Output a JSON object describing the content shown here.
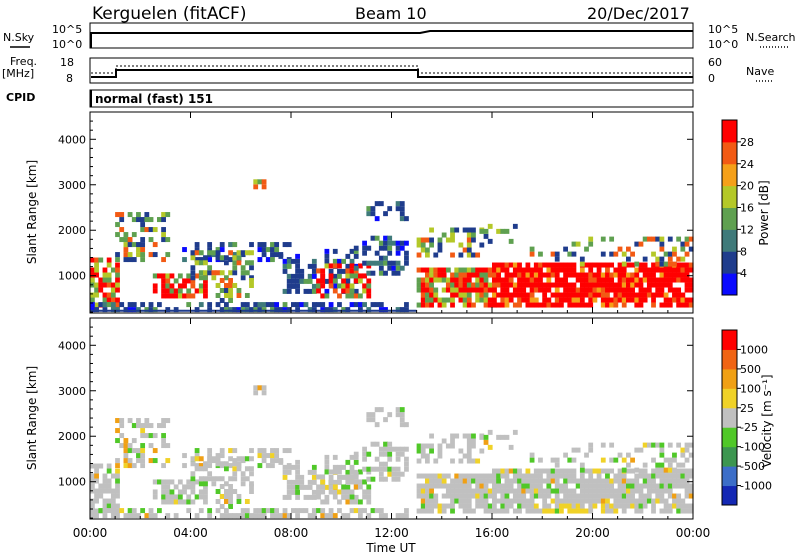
{
  "header": {
    "station": "Kerguelen (fitACF)",
    "beam": "Beam 10",
    "date": "20/Dec/2017"
  },
  "status_panels": {
    "nsky_label": "N.Sky",
    "nsky_ticks": [
      "10^5",
      "10^0"
    ],
    "nsearch_label": "N.Search",
    "nsearch_ticks": [
      "10^5",
      "10^0"
    ],
    "freq_label_1": "Freq.",
    "freq_label_2": "[MHz]",
    "freq_ticks": [
      "18",
      "8"
    ],
    "nave_label": "Nave",
    "nave_ticks": [
      "60",
      "0"
    ],
    "cpid_label": "CPID",
    "cpid_value": "normal (fast) 151"
  },
  "chart_data": [
    {
      "type": "heatmap",
      "name": "power",
      "ylabel": "Slant Range [km]",
      "ylim": [
        180,
        4600
      ],
      "yticks": [
        "1000",
        "2000",
        "3000",
        "4000"
      ],
      "colorbar_label": "Power [dB]",
      "colorbar_ticks": [
        "4",
        "8",
        "12",
        "16",
        "20",
        "24",
        "28"
      ],
      "colorbar_colors": [
        "#0a0aff",
        "#1f3c8c",
        "#3f7a7a",
        "#5fa050",
        "#b4c828",
        "#f5a019",
        "#f25a14",
        "#ff0000"
      ]
    },
    {
      "type": "heatmap",
      "name": "velocity",
      "ylabel": "Slant Range [km]",
      "ylim": [
        180,
        4600
      ],
      "yticks": [
        "1000",
        "2000",
        "3000",
        "4000"
      ],
      "colorbar_label": "Velocity [m s⁻¹]",
      "colorbar_ticks": [
        "1000",
        "500",
        "100",
        "25",
        "-25",
        "-100",
        "-500",
        "-1000"
      ],
      "colorbar_colors": [
        "#1428b4",
        "#3c6ec8",
        "#3c9650",
        "#50c828",
        "#c0c0c0",
        "#f0d228",
        "#f0a014",
        "#f06414",
        "#ff0000"
      ]
    }
  ],
  "time_axis": {
    "ticks": [
      "00:00",
      "04:00",
      "08:00",
      "12:00",
      "16:00",
      "20:00",
      "00:00"
    ],
    "xlabel": "Time UT"
  }
}
